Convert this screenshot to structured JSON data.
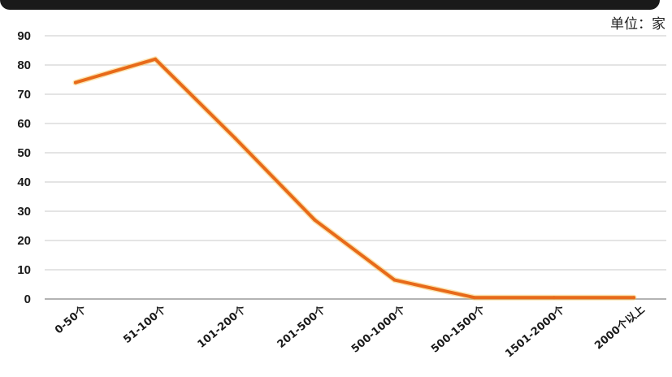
{
  "unit_label": "单位：家",
  "colors": {
    "line": "#E86A1A",
    "line_glow": "#F6C14A",
    "grid": "#C8C8C8",
    "axis": "#9A9A9A",
    "banner": "#1A1A1A"
  },
  "chart_data": {
    "type": "line",
    "title": "",
    "xlabel": "",
    "ylabel": "",
    "categories": [
      "0-50个",
      "51-100个",
      "101-200个",
      "201-500个",
      "500-1000个",
      "500-1500个",
      "1501-2000个",
      "2000个以上"
    ],
    "series": [
      {
        "values": [
          74,
          82,
          55,
          27,
          6.5,
          0.5,
          0.5,
          0.5
        ]
      }
    ],
    "ylim": [
      0,
      90
    ],
    "yticks": [
      0,
      10,
      20,
      30,
      40,
      50,
      60,
      70,
      80,
      90
    ],
    "grid": true,
    "legend": "none"
  }
}
